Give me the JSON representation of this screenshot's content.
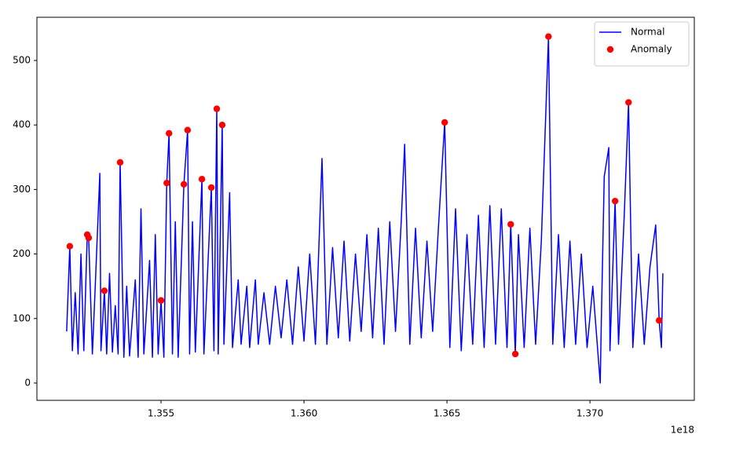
{
  "chart_data": {
    "type": "line",
    "x_offset_label": "1e18",
    "xlim": [
      1.35066,
      1.37365
    ],
    "ylim": [
      -26.8,
      566.9
    ],
    "xticks": [
      1.355,
      {
        "value": 1.36,
        "label": "1.360"
      },
      1.365,
      {
        "value": 1.37,
        "label": "1.370"
      }
    ],
    "yticks": [
      0,
      100,
      200,
      300,
      400,
      500
    ],
    "legend": "upper right",
    "series": [
      {
        "name": "Normal",
        "type": "line",
        "color": "#0000ff",
        "x": [
          1.3517,
          1.35181,
          1.3519,
          1.352,
          1.3521,
          1.3522,
          1.3523,
          1.35242,
          1.35247,
          1.3526,
          1.3527,
          1.35286,
          1.3529,
          1.35302,
          1.3531,
          1.3532,
          1.3533,
          1.3534,
          1.3535,
          1.35357,
          1.3537,
          1.3538,
          1.3539,
          1.3541,
          1.3542,
          1.3543,
          1.3544,
          1.3546,
          1.3547,
          1.3548,
          1.3549,
          1.355,
          1.3551,
          1.3552,
          1.35528,
          1.3554,
          1.3555,
          1.3556,
          1.3558,
          1.35593,
          1.356,
          1.3561,
          1.3562,
          1.35643,
          1.3565,
          1.35676,
          1.35685,
          1.35695,
          1.357,
          1.35714,
          1.3572,
          1.3574,
          1.3575,
          1.3577,
          1.3578,
          1.358,
          1.3581,
          1.3583,
          1.3584,
          1.3586,
          1.3588,
          1.359,
          1.3592,
          1.3594,
          1.3596,
          1.3598,
          1.36,
          1.3602,
          1.3604,
          1.36063,
          1.3608,
          1.361,
          1.3612,
          1.3614,
          1.3616,
          1.3618,
          1.362,
          1.3622,
          1.3624,
          1.3626,
          1.3628,
          1.363,
          1.3632,
          1.3634,
          1.36352,
          1.3637,
          1.3639,
          1.3641,
          1.3643,
          1.3645,
          1.3647,
          1.36492,
          1.3651,
          1.3653,
          1.3655,
          1.3657,
          1.3659,
          1.3661,
          1.3663,
          1.3665,
          1.3667,
          1.3669,
          1.3671,
          1.36723,
          1.36739,
          1.3675,
          1.3677,
          1.3679,
          1.3681,
          1.3683,
          1.36855,
          1.3687,
          1.3689,
          1.3691,
          1.3693,
          1.3695,
          1.3697,
          1.3699,
          1.3701,
          1.37036,
          1.3704,
          1.3705,
          1.37066,
          1.3707,
          1.37088,
          1.371,
          1.3712,
          1.37135,
          1.3715,
          1.3717,
          1.3719,
          1.3721,
          1.3723,
          1.37242,
          1.3725,
          1.37255
        ],
        "values": [
          80,
          212,
          50,
          140,
          45,
          200,
          50,
          230,
          225,
          45,
          150,
          325,
          50,
          143,
          45,
          170,
          48,
          120,
          45,
          342,
          40,
          150,
          42,
          160,
          40,
          270,
          45,
          190,
          40,
          230,
          45,
          128,
          40,
          310,
          387,
          45,
          250,
          40,
          308,
          392,
          45,
          250,
          48,
          316,
          45,
          303,
          50,
          425,
          45,
          400,
          60,
          295,
          55,
          160,
          60,
          150,
          55,
          160,
          60,
          140,
          60,
          150,
          70,
          160,
          60,
          180,
          65,
          200,
          60,
          348,
          60,
          210,
          70,
          220,
          65,
          200,
          80,
          230,
          70,
          240,
          60,
          250,
          80,
          250,
          370,
          60,
          240,
          70,
          220,
          80,
          240,
          404,
          55,
          270,
          50,
          230,
          60,
          260,
          55,
          275,
          60,
          270,
          55,
          246,
          45,
          230,
          55,
          240,
          60,
          220,
          537,
          60,
          230,
          55,
          220,
          60,
          200,
          55,
          150,
          0,
          100,
          320,
          365,
          50,
          282,
          60,
          260,
          435,
          55,
          200,
          60,
          180,
          245,
          97,
          55,
          170
        ]
      },
      {
        "name": "Anomaly",
        "type": "scatter",
        "color": "#ff0000",
        "x": [
          1.35181,
          1.35242,
          1.35247,
          1.35302,
          1.35357,
          1.355,
          1.3552,
          1.35528,
          1.3558,
          1.35593,
          1.35643,
          1.35676,
          1.35695,
          1.35714,
          1.36492,
          1.36723,
          1.36739,
          1.36855,
          1.37088,
          1.37135,
          1.37242
        ],
        "values": [
          212,
          230,
          225,
          143,
          342,
          128,
          310,
          387,
          308,
          392,
          316,
          303,
          425,
          400,
          404,
          246,
          45,
          537,
          282,
          435,
          97
        ]
      }
    ]
  }
}
